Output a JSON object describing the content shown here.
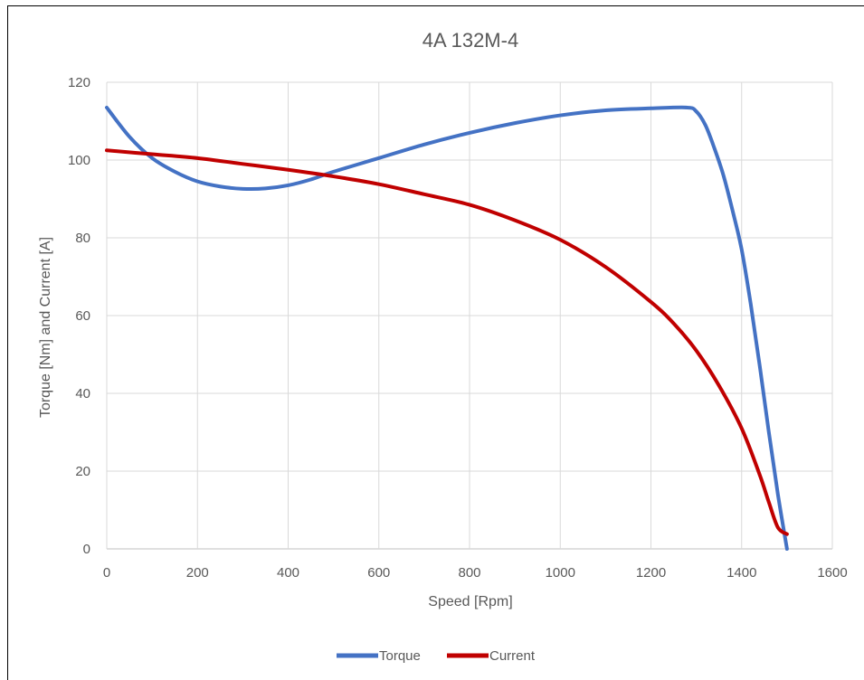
{
  "chart_data": {
    "type": "line",
    "title": "4A 132M-4",
    "xlabel": "Speed [Rpm]",
    "ylabel": "Torque [Nm] and Current [A]",
    "xlim": [
      0,
      1600
    ],
    "ylim": [
      0,
      120
    ],
    "xticks": [
      0,
      200,
      400,
      600,
      800,
      1000,
      1200,
      1400,
      1600
    ],
    "yticks": [
      0,
      20,
      40,
      60,
      80,
      100,
      120
    ],
    "grid": true,
    "legend_position": "bottom",
    "series": [
      {
        "name": "Torque",
        "color": "#4472C4",
        "points": [
          [
            0,
            113.5
          ],
          [
            50,
            106
          ],
          [
            100,
            100.5
          ],
          [
            150,
            97
          ],
          [
            200,
            94.5
          ],
          [
            250,
            93.2
          ],
          [
            300,
            92.6
          ],
          [
            350,
            92.7
          ],
          [
            400,
            93.5
          ],
          [
            450,
            95
          ],
          [
            500,
            97
          ],
          [
            600,
            100.5
          ],
          [
            700,
            104
          ],
          [
            800,
            107
          ],
          [
            900,
            109.5
          ],
          [
            1000,
            111.5
          ],
          [
            1100,
            112.8
          ],
          [
            1200,
            113.3
          ],
          [
            1280,
            113.5
          ],
          [
            1300,
            112.5
          ],
          [
            1320,
            109
          ],
          [
            1340,
            103
          ],
          [
            1360,
            96
          ],
          [
            1380,
            87
          ],
          [
            1400,
            77
          ],
          [
            1420,
            63
          ],
          [
            1440,
            47
          ],
          [
            1460,
            30
          ],
          [
            1480,
            14
          ],
          [
            1500,
            0
          ]
        ]
      },
      {
        "name": "Current",
        "color": "#C00000",
        "points": [
          [
            0,
            102.5
          ],
          [
            100,
            101.5
          ],
          [
            200,
            100.5
          ],
          [
            300,
            99
          ],
          [
            400,
            97.5
          ],
          [
            500,
            95.8
          ],
          [
            600,
            93.8
          ],
          [
            700,
            91.2
          ],
          [
            800,
            88.5
          ],
          [
            900,
            84.5
          ],
          [
            1000,
            79.5
          ],
          [
            1100,
            72.5
          ],
          [
            1200,
            63.5
          ],
          [
            1250,
            58
          ],
          [
            1300,
            51
          ],
          [
            1350,
            42
          ],
          [
            1400,
            31
          ],
          [
            1440,
            19
          ],
          [
            1460,
            12
          ],
          [
            1480,
            5.5
          ],
          [
            1500,
            3.8
          ]
        ]
      }
    ]
  }
}
